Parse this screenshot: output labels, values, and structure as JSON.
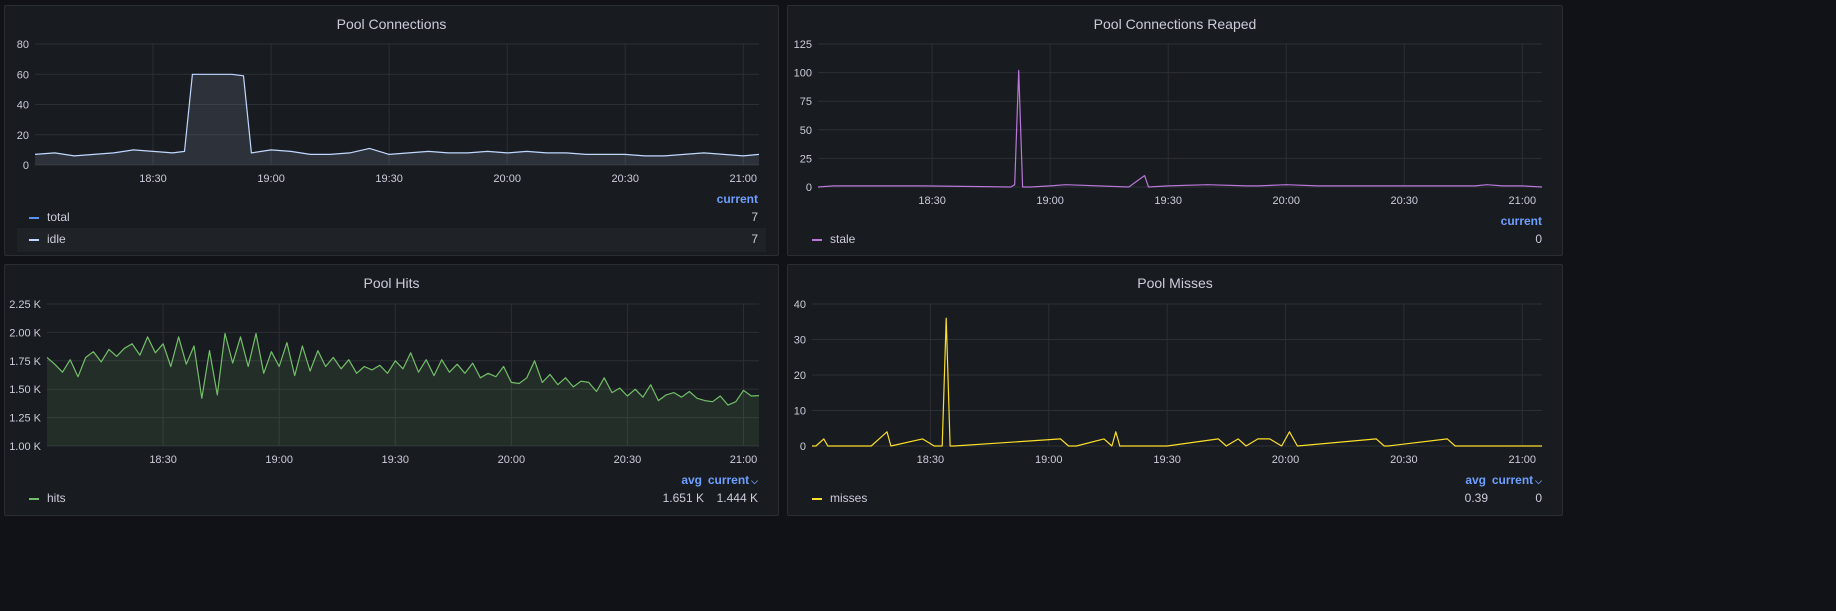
{
  "colors": {
    "background": "#111217",
    "panel": "#181b1f",
    "grid": "#2c2f35",
    "legend_header": "#6e9fff",
    "total": "#5794f2",
    "idle": "#c0d8ff",
    "stale": "#b877d9",
    "hits": "#73bf69",
    "misses": "#fade2a"
  },
  "panels": [
    {
      "title": "Pool Connections",
      "legend_headers": [
        "current"
      ],
      "legend": [
        {
          "name": "total",
          "values": [
            "7"
          ]
        },
        {
          "name": "idle",
          "values": [
            "7"
          ]
        }
      ]
    },
    {
      "title": "Pool Connections Reaped",
      "legend_headers": [
        "current"
      ],
      "legend": [
        {
          "name": "stale",
          "values": [
            "0"
          ]
        }
      ]
    },
    {
      "title": "Pool Hits",
      "legend_headers": [
        "avg",
        "current"
      ],
      "legend": [
        {
          "name": "hits",
          "values": [
            "1.651 K",
            "1.444 K"
          ]
        }
      ]
    },
    {
      "title": "Pool Misses",
      "legend_headers": [
        "avg",
        "current"
      ],
      "legend": [
        {
          "name": "misses",
          "values": [
            "0.39",
            "0"
          ]
        }
      ]
    }
  ],
  "chart_data": [
    {
      "type": "area",
      "title": "Pool Connections",
      "x_ticks": [
        "18:30",
        "19:00",
        "19:30",
        "20:00",
        "20:30",
        "21:00"
      ],
      "y_ticks": [
        "0",
        "20",
        "40",
        "60",
        "80"
      ],
      "ylim": [
        0,
        80
      ],
      "xlim": [
        "18:00",
        "21:04"
      ],
      "series": [
        {
          "name": "idle",
          "x": [
            "18:00",
            "18:05",
            "18:10",
            "18:15",
            "18:20",
            "18:25",
            "18:30",
            "18:35",
            "18:38",
            "18:40",
            "18:45",
            "18:50",
            "18:53",
            "18:55",
            "19:00",
            "19:05",
            "19:10",
            "19:15",
            "19:20",
            "19:25",
            "19:30",
            "19:35",
            "19:40",
            "19:45",
            "19:50",
            "19:55",
            "20:00",
            "20:05",
            "20:10",
            "20:15",
            "20:20",
            "20:25",
            "20:30",
            "20:35",
            "20:40",
            "20:45",
            "20:50",
            "20:55",
            "21:00",
            "21:04"
          ],
          "y": [
            7,
            8,
            6,
            7,
            8,
            10,
            9,
            8,
            9,
            60,
            60,
            60,
            59,
            8,
            10,
            9,
            7,
            7,
            8,
            11,
            7,
            8,
            9,
            8,
            8,
            9,
            8,
            9,
            8,
            8,
            7,
            7,
            7,
            6,
            6,
            7,
            8,
            7,
            6,
            7
          ]
        }
      ],
      "grid": true
    },
    {
      "type": "line",
      "title": "Pool Connections Reaped",
      "x_ticks": [
        "18:30",
        "19:00",
        "19:30",
        "20:00",
        "20:30",
        "21:00"
      ],
      "y_ticks": [
        "0",
        "25",
        "50",
        "75",
        "100",
        "125"
      ],
      "ylim": [
        0,
        125
      ],
      "xlim": [
        "18:01",
        "21:05"
      ],
      "series": [
        {
          "name": "stale",
          "x": [
            "18:01",
            "18:05",
            "18:09",
            "18:28",
            "18:50",
            "18:51",
            "18:52",
            "18:53",
            "18:55",
            "19:00",
            "19:04",
            "19:20",
            "19:24",
            "19:25",
            "19:30",
            "19:40",
            "19:50",
            "19:53",
            "20:00",
            "20:08",
            "20:12",
            "20:30",
            "20:48",
            "20:51",
            "20:55",
            "21:00",
            "21:05"
          ],
          "y": [
            0,
            1,
            1,
            1,
            0,
            2,
            102,
            0,
            0,
            1,
            2,
            0,
            10,
            0,
            1,
            2,
            1,
            1,
            2,
            1,
            1,
            1,
            1,
            2,
            1,
            1,
            0
          ]
        }
      ],
      "grid": true
    },
    {
      "type": "area",
      "title": "Pool Hits",
      "x_ticks": [
        "18:30",
        "19:00",
        "19:30",
        "20:00",
        "20:30",
        "21:00"
      ],
      "y_ticks": [
        "1.00 K",
        "1.25 K",
        "1.50 K",
        "1.75 K",
        "2.00 K",
        "2.25 K"
      ],
      "ylim": [
        1000,
        2250
      ],
      "xlim": [
        "18:00",
        "21:04"
      ],
      "series": [
        {
          "name": "hits",
          "x": [
            "18:00",
            "18:02",
            "18:04",
            "18:06",
            "18:08",
            "18:10",
            "18:12",
            "18:14",
            "18:16",
            "18:18",
            "18:20",
            "18:22",
            "18:24",
            "18:26",
            "18:28",
            "18:30",
            "18:32",
            "18:34",
            "18:36",
            "18:38",
            "18:40",
            "18:42",
            "18:44",
            "18:46",
            "18:48",
            "18:50",
            "18:52",
            "18:54",
            "18:56",
            "18:58",
            "19:00",
            "19:02",
            "19:04",
            "19:06",
            "19:08",
            "19:10",
            "19:12",
            "19:14",
            "19:16",
            "19:18",
            "19:20",
            "19:22",
            "19:24",
            "19:26",
            "19:28",
            "19:30",
            "19:32",
            "19:34",
            "19:36",
            "19:38",
            "19:40",
            "19:42",
            "19:44",
            "19:46",
            "19:48",
            "19:50",
            "19:52",
            "19:54",
            "19:56",
            "19:58",
            "20:00",
            "20:02",
            "20:04",
            "20:06",
            "20:08",
            "20:10",
            "20:12",
            "20:14",
            "20:16",
            "20:18",
            "20:20",
            "20:22",
            "20:24",
            "20:26",
            "20:28",
            "20:30",
            "20:32",
            "20:34",
            "20:36",
            "20:38",
            "20:40",
            "20:42",
            "20:44",
            "20:46",
            "20:48",
            "20:50",
            "20:52",
            "20:54",
            "20:56",
            "20:58",
            "21:00",
            "21:02",
            "21:04"
          ],
          "y": [
            1780,
            1720,
            1650,
            1760,
            1610,
            1780,
            1830,
            1740,
            1850,
            1790,
            1860,
            1900,
            1800,
            1960,
            1820,
            1900,
            1700,
            1960,
            1720,
            1880,
            1420,
            1840,
            1450,
            1990,
            1730,
            1960,
            1700,
            1990,
            1640,
            1830,
            1700,
            1910,
            1620,
            1880,
            1660,
            1840,
            1700,
            1780,
            1680,
            1760,
            1640,
            1700,
            1670,
            1710,
            1640,
            1750,
            1680,
            1820,
            1650,
            1760,
            1620,
            1760,
            1650,
            1720,
            1640,
            1730,
            1600,
            1640,
            1610,
            1700,
            1560,
            1550,
            1600,
            1750,
            1560,
            1630,
            1540,
            1600,
            1520,
            1570,
            1560,
            1480,
            1600,
            1470,
            1510,
            1440,
            1500,
            1430,
            1540,
            1400,
            1450,
            1470,
            1430,
            1480,
            1420,
            1400,
            1390,
            1440,
            1360,
            1390,
            1490,
            1440,
            1444
          ]
        }
      ],
      "grid": true
    },
    {
      "type": "line",
      "title": "Pool Misses",
      "x_ticks": [
        "18:30",
        "19:00",
        "19:30",
        "20:00",
        "20:30",
        "21:00"
      ],
      "y_ticks": [
        "0",
        "10",
        "20",
        "30",
        "40"
      ],
      "ylim": [
        0,
        40
      ],
      "xlim": [
        "18:00",
        "21:05"
      ],
      "series": [
        {
          "name": "misses",
          "x": [
            "18:00",
            "18:01",
            "18:03",
            "18:04",
            "18:15",
            "18:17",
            "18:19",
            "18:20",
            "18:28",
            "18:31",
            "18:33",
            "18:34",
            "18:35",
            "18:36",
            "19:03",
            "19:05",
            "19:07",
            "19:14",
            "19:16",
            "19:17",
            "19:18",
            "19:30",
            "19:43",
            "19:45",
            "19:48",
            "19:50",
            "19:53",
            "19:56",
            "19:59",
            "20:01",
            "20:03",
            "20:23",
            "20:25",
            "20:26",
            "20:41",
            "20:43",
            "20:44",
            "21:05"
          ],
          "y": [
            0,
            0,
            2,
            0,
            0,
            2,
            4,
            0,
            2,
            0,
            0,
            36,
            0,
            0,
            2,
            0,
            0,
            2,
            0,
            4,
            0,
            0,
            2,
            0,
            2,
            0,
            2,
            2,
            0,
            4,
            0,
            2,
            0,
            0,
            2,
            0,
            0,
            0
          ]
        }
      ],
      "grid": true
    }
  ]
}
